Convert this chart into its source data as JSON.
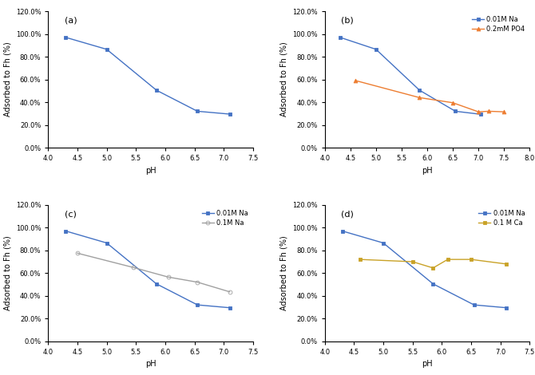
{
  "panel_a": {
    "label": "(a)",
    "x": [
      4.3,
      5.0,
      5.85,
      6.55,
      7.1
    ],
    "y": [
      0.97,
      0.865,
      0.505,
      0.32,
      0.295
    ],
    "color": "#4472C4",
    "marker": "s",
    "markersize": 3.5,
    "linewidth": 1.0,
    "xlabel": "pH",
    "ylabel": "Adsorbed to Fh (%)",
    "xlim": [
      4.0,
      7.5
    ],
    "ylim": [
      0.0,
      1.2
    ],
    "yticks": [
      0.0,
      0.2,
      0.4,
      0.6,
      0.8,
      1.0,
      1.2
    ]
  },
  "panel_b": {
    "label": "(b)",
    "series": [
      {
        "name": "0.01M Na",
        "x": [
          4.3,
          5.0,
          5.85,
          6.55,
          7.05
        ],
        "y": [
          0.97,
          0.865,
          0.505,
          0.32,
          0.293
        ],
        "color": "#4472C4",
        "marker": "s",
        "linestyle": "-",
        "fillstyle": "full"
      },
      {
        "name": "0.2mM PO4",
        "x": [
          4.6,
          5.85,
          6.5,
          7.0,
          7.2,
          7.5
        ],
        "y": [
          0.59,
          0.44,
          0.395,
          0.315,
          0.32,
          0.315
        ],
        "color": "#ED7D31",
        "marker": "^",
        "linestyle": "-",
        "fillstyle": "full"
      }
    ],
    "xlabel": "pH",
    "ylabel": "Adsorbed to Fh (%)",
    "xlim": [
      4.0,
      8.0
    ],
    "ylim": [
      0.0,
      1.2
    ],
    "yticks": [
      0.0,
      0.2,
      0.4,
      0.6,
      0.8,
      1.0,
      1.2
    ]
  },
  "panel_c": {
    "label": "(c)",
    "series": [
      {
        "name": "0.01M Na",
        "x": [
          4.3,
          5.0,
          5.85,
          6.55,
          7.1
        ],
        "y": [
          0.97,
          0.865,
          0.505,
          0.32,
          0.295
        ],
        "color": "#4472C4",
        "marker": "s",
        "linestyle": "-",
        "fillstyle": "full"
      },
      {
        "name": "0.1M Na",
        "x": [
          4.5,
          5.45,
          6.05,
          6.55,
          7.1
        ],
        "y": [
          0.775,
          0.65,
          0.565,
          0.52,
          0.435
        ],
        "color": "#A0A0A0",
        "marker": "o",
        "linestyle": "-",
        "fillstyle": "none"
      }
    ],
    "xlabel": "pH",
    "ylabel": "Adsorbed to Fh (%)",
    "xlim": [
      4.0,
      7.5
    ],
    "ylim": [
      0.0,
      1.2
    ],
    "yticks": [
      0.0,
      0.2,
      0.4,
      0.6,
      0.8,
      1.0,
      1.2
    ]
  },
  "panel_d": {
    "label": "(d)",
    "series": [
      {
        "name": "0.01M Na",
        "x": [
          4.3,
          5.0,
          5.85,
          6.55,
          7.1
        ],
        "y": [
          0.97,
          0.865,
          0.505,
          0.32,
          0.295
        ],
        "color": "#4472C4",
        "marker": "s",
        "linestyle": "-",
        "fillstyle": "full"
      },
      {
        "name": "0.1 M Ca",
        "x": [
          4.6,
          5.5,
          5.85,
          6.1,
          6.5,
          7.1
        ],
        "y": [
          0.72,
          0.7,
          0.645,
          0.72,
          0.72,
          0.68
        ],
        "color": "#C9A227",
        "marker": "s",
        "linestyle": "-",
        "fillstyle": "full"
      }
    ],
    "xlabel": "pH",
    "ylabel": "Adsorbed to Fh (%)",
    "xlim": [
      4.0,
      7.5
    ],
    "ylim": [
      0.0,
      1.2
    ],
    "yticks": [
      0.0,
      0.2,
      0.4,
      0.6,
      0.8,
      1.0,
      1.2
    ]
  },
  "label_fontsize": 8,
  "tick_fontsize": 6,
  "axis_label_fontsize": 7,
  "legend_fontsize": 6,
  "markersize": 3.5,
  "linewidth": 1.0
}
